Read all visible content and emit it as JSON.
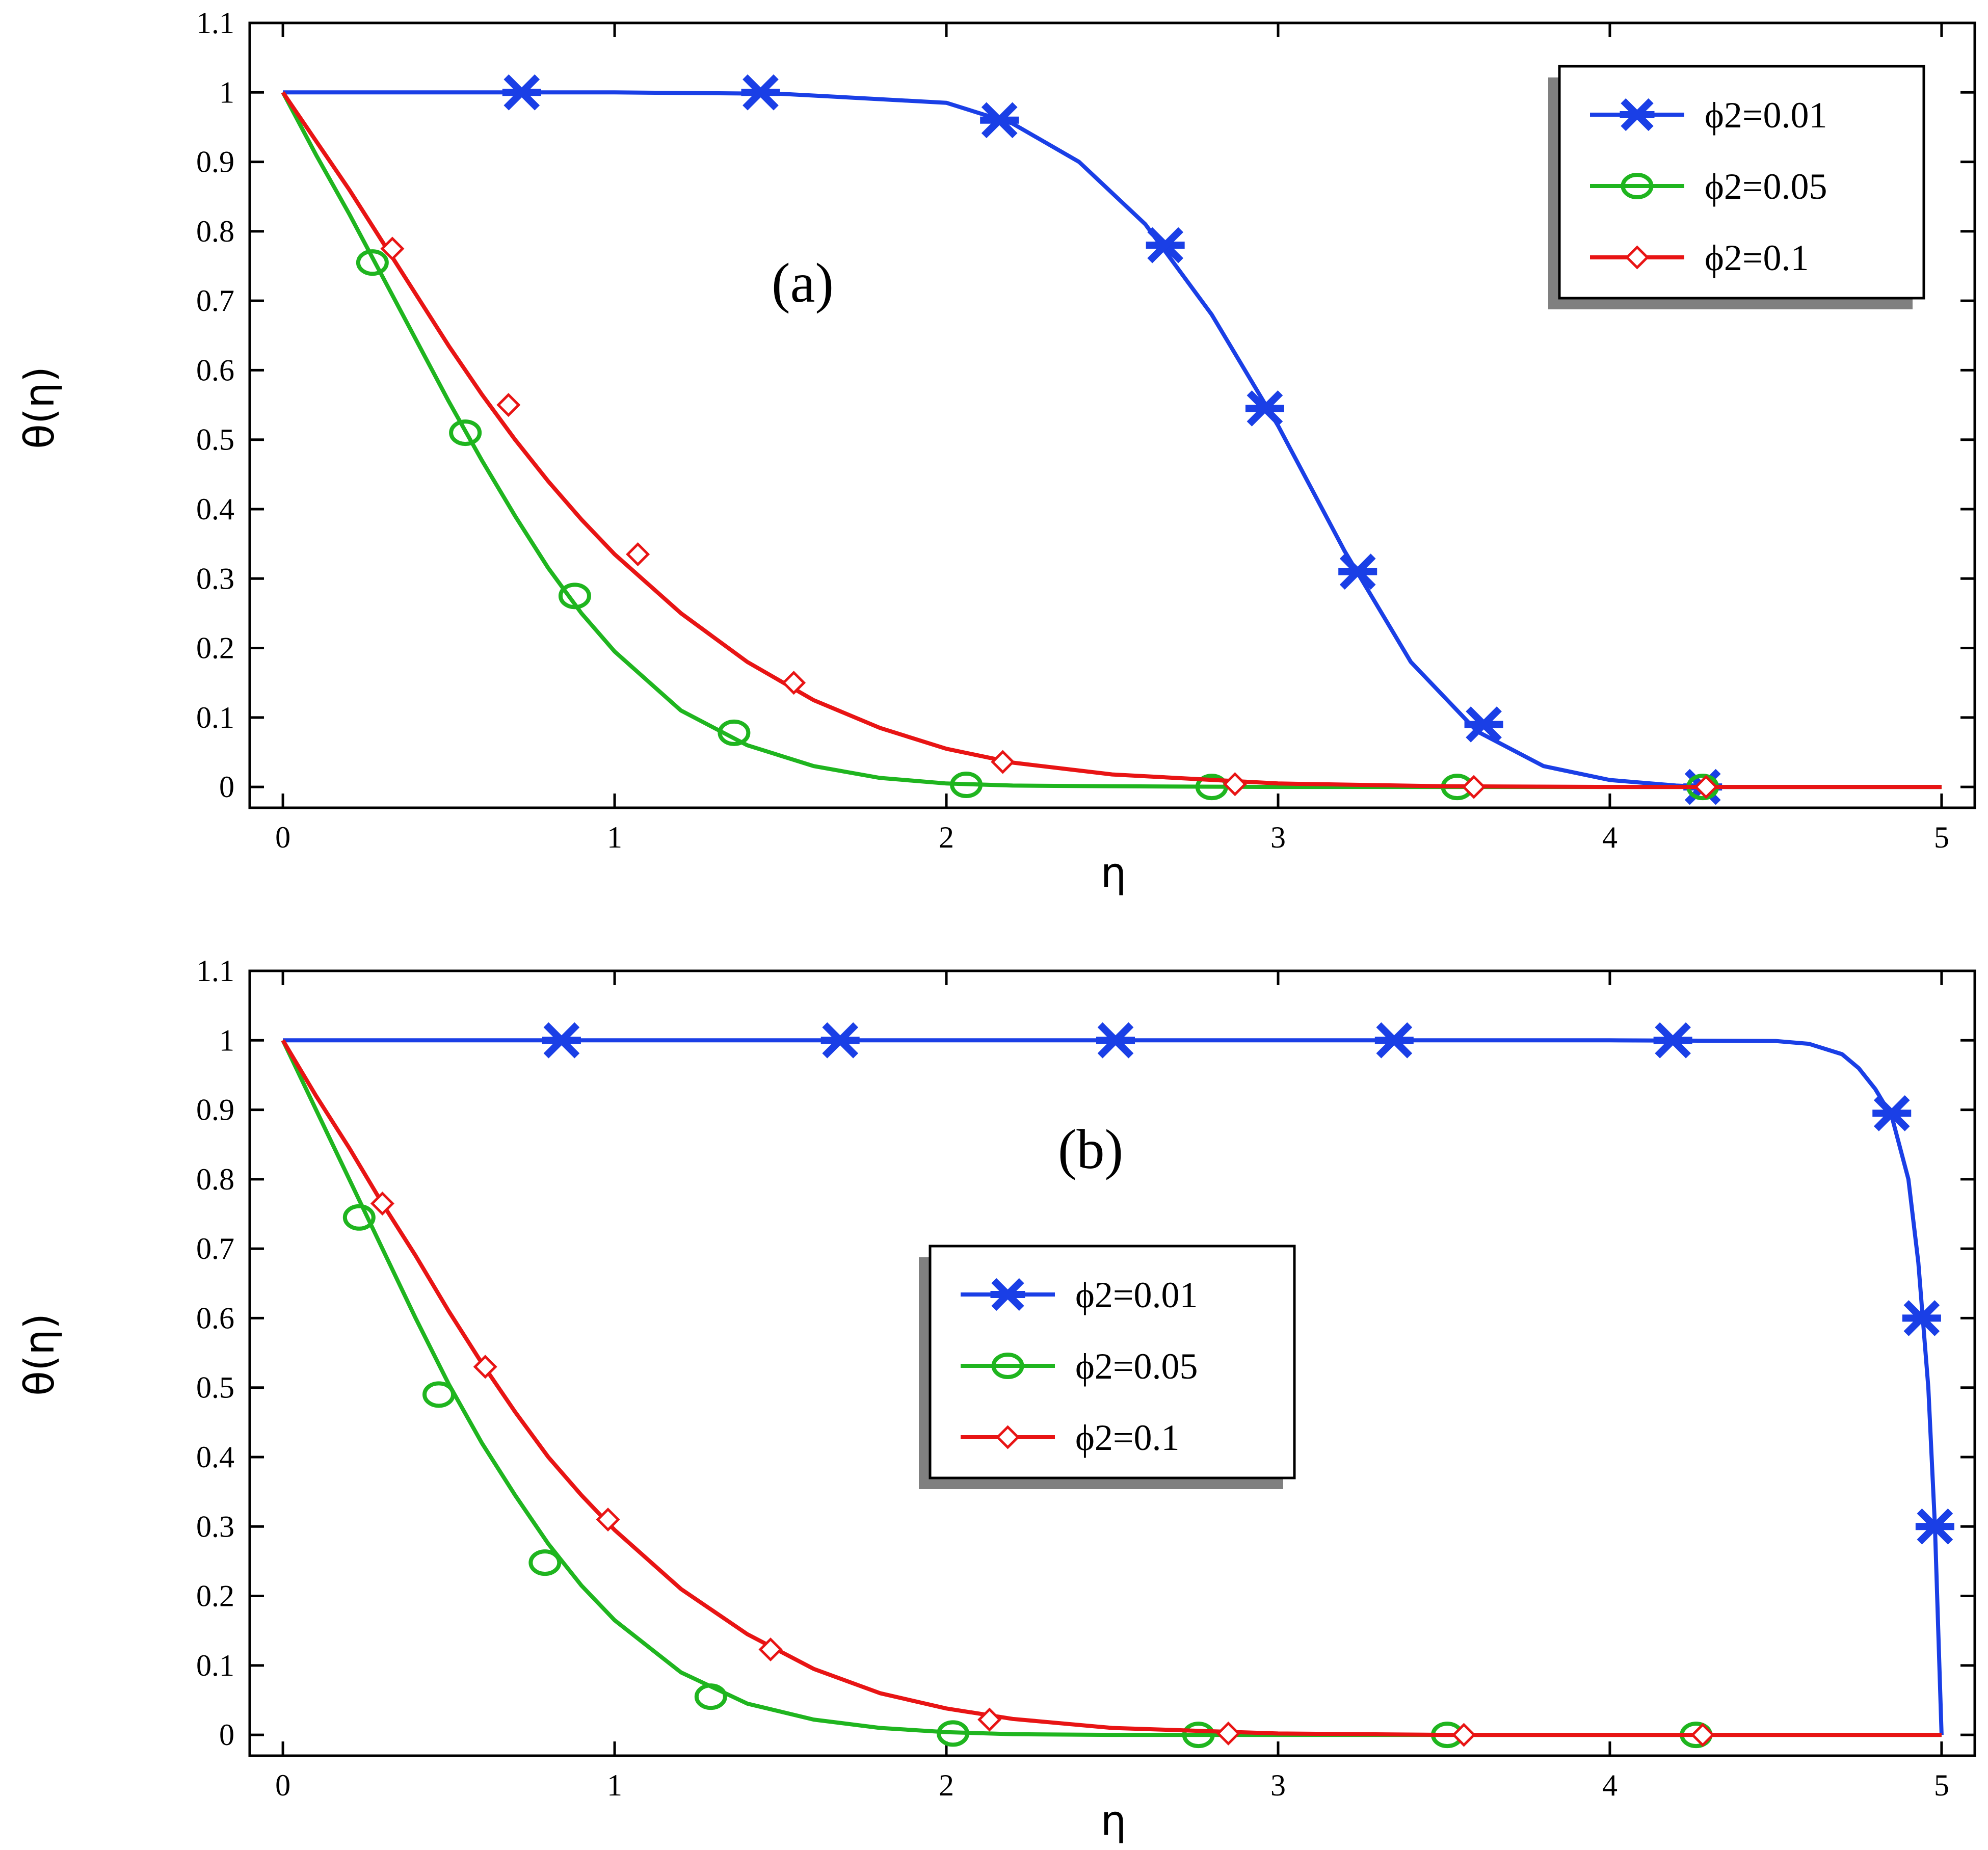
{
  "chart_data": [
    {
      "type": "line",
      "panel_label": "(a)",
      "xlabel": "η",
      "ylabel": "θ(η)",
      "xlim": [
        -0.1,
        5.1
      ],
      "ylim": [
        -0.03,
        1.1
      ],
      "xticks": [
        0,
        1,
        2,
        3,
        4,
        5
      ],
      "yticks": [
        0,
        0.1,
        0.2,
        0.3,
        0.4,
        0.5,
        0.6,
        0.7,
        0.8,
        0.9,
        1,
        1.1
      ],
      "grid": false,
      "legend_position": "top-right",
      "series": [
        {
          "name": "ϕ2=0.01",
          "color": "#1a3fe6",
          "marker": "asterisk",
          "x": [
            0,
            0.5,
            1.0,
            1.5,
            2.0,
            2.2,
            2.4,
            2.6,
            2.8,
            3.0,
            3.2,
            3.4,
            3.6,
            3.8,
            4.0,
            4.2,
            4.3,
            4.5,
            5.0
          ],
          "y": [
            1,
            1,
            1,
            0.998,
            0.985,
            0.955,
            0.9,
            0.81,
            0.68,
            0.52,
            0.34,
            0.18,
            0.08,
            0.03,
            0.01,
            0.002,
            0,
            0,
            0
          ],
          "marker_points": [
            [
              0.72,
              1
            ],
            [
              1.44,
              1
            ],
            [
              2.16,
              0.96
            ],
            [
              2.66,
              0.78
            ],
            [
              2.96,
              0.545
            ],
            [
              3.24,
              0.31
            ],
            [
              3.62,
              0.09
            ],
            [
              4.28,
              0
            ]
          ]
        },
        {
          "name": "ϕ2=0.05",
          "color": "#1fb51f",
          "marker": "circle",
          "x": [
            0,
            0.1,
            0.2,
            0.3,
            0.4,
            0.5,
            0.6,
            0.7,
            0.8,
            0.9,
            1.0,
            1.2,
            1.4,
            1.6,
            1.8,
            2.0,
            2.2,
            2.5,
            3.0,
            3.5,
            4.0,
            4.5,
            5.0
          ],
          "y": [
            1,
            0.91,
            0.825,
            0.735,
            0.645,
            0.555,
            0.47,
            0.39,
            0.315,
            0.25,
            0.195,
            0.11,
            0.06,
            0.03,
            0.013,
            0.005,
            0.002,
            0.001,
            0,
            0,
            0,
            0,
            0
          ],
          "marker_points": [
            [
              0.27,
              0.755
            ],
            [
              0.55,
              0.51
            ],
            [
              0.88,
              0.275
            ],
            [
              1.36,
              0.078
            ],
            [
              2.06,
              0.003
            ],
            [
              2.8,
              0
            ],
            [
              3.54,
              0
            ],
            [
              4.28,
              0
            ]
          ]
        },
        {
          "name": "ϕ2=0.1",
          "color": "#e81414",
          "marker": "diamond",
          "x": [
            0,
            0.1,
            0.2,
            0.3,
            0.4,
            0.5,
            0.6,
            0.7,
            0.8,
            0.9,
            1.0,
            1.2,
            1.4,
            1.6,
            1.8,
            2.0,
            2.2,
            2.5,
            3.0,
            3.5,
            4.0,
            4.5,
            5.0
          ],
          "y": [
            1,
            0.93,
            0.86,
            0.785,
            0.71,
            0.635,
            0.565,
            0.5,
            0.44,
            0.385,
            0.335,
            0.25,
            0.18,
            0.125,
            0.085,
            0.055,
            0.035,
            0.018,
            0.005,
            0.001,
            0,
            0,
            0
          ],
          "marker_points": [
            [
              0.33,
              0.775
            ],
            [
              0.68,
              0.55
            ],
            [
              1.07,
              0.335
            ],
            [
              1.54,
              0.15
            ],
            [
              2.17,
              0.036
            ],
            [
              2.87,
              0.004
            ],
            [
              3.59,
              0
            ],
            [
              4.29,
              0
            ]
          ]
        }
      ]
    },
    {
      "type": "line",
      "panel_label": "(b)",
      "xlabel": "η",
      "ylabel": "θ(η)",
      "xlim": [
        -0.1,
        5.1
      ],
      "ylim": [
        -0.03,
        1.1
      ],
      "xticks": [
        0,
        1,
        2,
        3,
        4,
        5
      ],
      "yticks": [
        0,
        0.1,
        0.2,
        0.3,
        0.4,
        0.5,
        0.6,
        0.7,
        0.8,
        0.9,
        1,
        1.1
      ],
      "grid": false,
      "legend_position": "center",
      "series": [
        {
          "name": "ϕ2=0.01",
          "color": "#1a3fe6",
          "marker": "asterisk",
          "x": [
            0,
            1,
            2,
            3,
            4,
            4.5,
            4.6,
            4.7,
            4.75,
            4.8,
            4.85,
            4.9,
            4.93,
            4.96,
            4.98,
            5.0
          ],
          "y": [
            1,
            1,
            1,
            1,
            1,
            0.999,
            0.995,
            0.98,
            0.96,
            0.93,
            0.89,
            0.8,
            0.68,
            0.5,
            0.3,
            0
          ],
          "marker_points": [
            [
              0.84,
              1
            ],
            [
              1.68,
              1
            ],
            [
              2.51,
              1
            ],
            [
              3.35,
              1
            ],
            [
              4.19,
              1
            ],
            [
              4.85,
              0.895
            ],
            [
              4.94,
              0.6
            ],
            [
              4.98,
              0.3
            ]
          ]
        },
        {
          "name": "ϕ2=0.05",
          "color": "#1fb51f",
          "marker": "circle",
          "x": [
            0,
            0.1,
            0.2,
            0.3,
            0.4,
            0.5,
            0.6,
            0.7,
            0.8,
            0.9,
            1.0,
            1.2,
            1.4,
            1.6,
            1.8,
            2.0,
            2.2,
            2.5,
            3.0,
            3.5,
            4.0,
            4.5,
            5.0
          ],
          "y": [
            1,
            0.9,
            0.8,
            0.7,
            0.6,
            0.505,
            0.42,
            0.345,
            0.275,
            0.215,
            0.165,
            0.09,
            0.045,
            0.022,
            0.01,
            0.004,
            0.001,
            0,
            0,
            0,
            0,
            0,
            0
          ],
          "marker_points": [
            [
              0.23,
              0.745
            ],
            [
              0.47,
              0.49
            ],
            [
              0.79,
              0.248
            ],
            [
              1.29,
              0.055
            ],
            [
              2.02,
              0.002
            ],
            [
              2.76,
              0
            ],
            [
              3.51,
              0
            ],
            [
              4.26,
              0
            ]
          ]
        },
        {
          "name": "ϕ2=0.1",
          "color": "#e81414",
          "marker": "diamond",
          "x": [
            0,
            0.1,
            0.2,
            0.3,
            0.4,
            0.5,
            0.6,
            0.7,
            0.8,
            0.9,
            1.0,
            1.2,
            1.4,
            1.6,
            1.8,
            2.0,
            2.2,
            2.5,
            3.0,
            3.5,
            4.0,
            4.5,
            5.0
          ],
          "y": [
            1,
            0.92,
            0.845,
            0.765,
            0.69,
            0.61,
            0.535,
            0.465,
            0.4,
            0.345,
            0.295,
            0.21,
            0.145,
            0.095,
            0.06,
            0.038,
            0.023,
            0.01,
            0.002,
            0,
            0,
            0,
            0
          ],
          "marker_points": [
            [
              0.3,
              0.765
            ],
            [
              0.61,
              0.53
            ],
            [
              0.98,
              0.31
            ],
            [
              1.47,
              0.123
            ],
            [
              2.13,
              0.022
            ],
            [
              2.85,
              0.002
            ],
            [
              3.56,
              0
            ],
            [
              4.28,
              0
            ]
          ]
        }
      ]
    }
  ]
}
